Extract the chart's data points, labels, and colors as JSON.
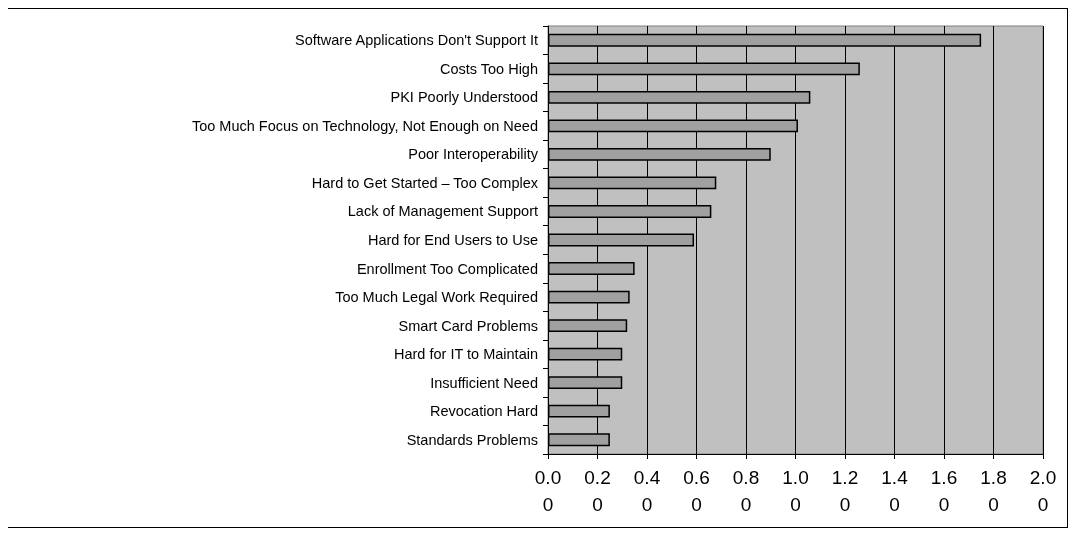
{
  "chart_data": {
    "type": "bar",
    "orientation": "horizontal",
    "categories": [
      "Software Applications Don't Support It",
      "Costs Too High",
      "PKI Poorly Understood",
      "Too Much Focus on Technology, Not Enough on Need",
      "Poor Interoperability",
      "Hard to Get Started – Too Complex",
      "Lack of Management Support",
      "Hard for End Users to Use",
      "Enrollment Too Complicated",
      "Too Much Legal Work Required",
      "Smart Card Problems",
      "Hard for IT to Maintain",
      "Insufficient Need",
      "Revocation Hard",
      "Standards Problems"
    ],
    "values": [
      1.75,
      1.26,
      1.06,
      1.01,
      0.9,
      0.68,
      0.66,
      0.59,
      0.35,
      0.33,
      0.32,
      0.3,
      0.3,
      0.25,
      0.25
    ],
    "color": "#a0a0a0",
    "xlim": [
      0,
      2
    ],
    "xticks": [
      {
        "value": 0,
        "label": "0.00"
      },
      {
        "value": 0.2,
        "label": "0.20"
      },
      {
        "value": 0.4,
        "label": "0.40"
      },
      {
        "value": 0.6,
        "label": "0.60"
      },
      {
        "value": 0.8,
        "label": "0.80"
      },
      {
        "value": 1,
        "label": "1.00"
      },
      {
        "value": 1.2,
        "label": "1.20"
      },
      {
        "value": 1.4,
        "label": "1.40"
      },
      {
        "value": 1.6,
        "label": "1.60"
      },
      {
        "value": 1.8,
        "label": "1.80"
      },
      {
        "value": 2,
        "label": "2.00"
      }
    ],
    "grid": "x"
  }
}
